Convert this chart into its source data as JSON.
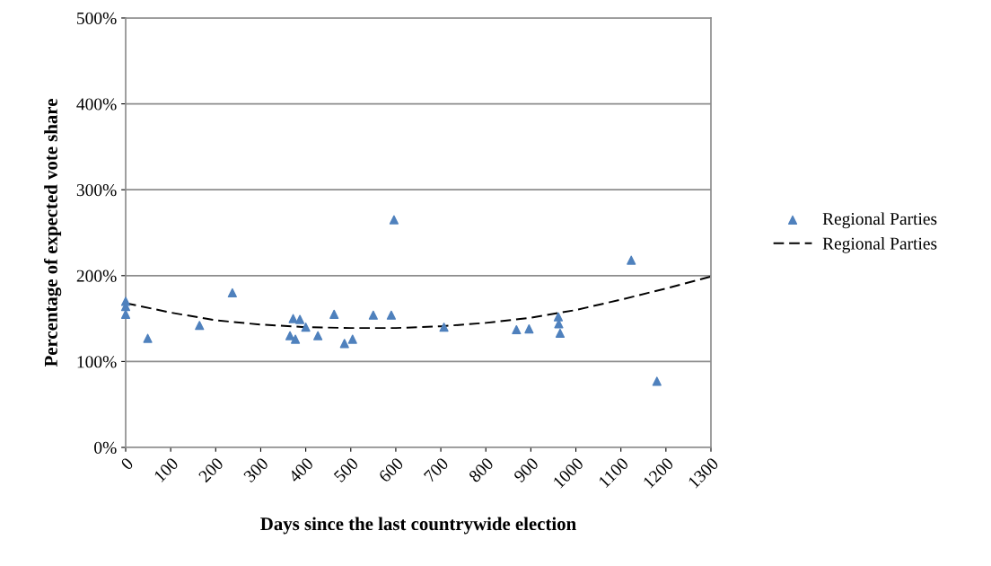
{
  "chart_data": {
    "type": "scatter",
    "xlabel": "Days since the last countrywide election",
    "ylabel": "Percentage of expected vote share",
    "xlim": [
      0,
      1300
    ],
    "xticks": [
      0,
      100,
      200,
      300,
      400,
      500,
      600,
      700,
      800,
      900,
      1000,
      1100,
      1200,
      1300
    ],
    "ylim": [
      0,
      500
    ],
    "yticks": [
      {
        "value": 0,
        "label": "0%"
      },
      {
        "value": 100,
        "label": "100%"
      },
      {
        "value": 200,
        "label": "200%"
      },
      {
        "value": 300,
        "label": "300%"
      },
      {
        "value": 400,
        "label": "400%"
      },
      {
        "value": 500,
        "label": "500%"
      }
    ],
    "grid": "y",
    "legend": "right",
    "series": [
      {
        "name": "Regional Parties",
        "color": "#4f81bd",
        "marker": "triangle",
        "x": [
          0,
          0,
          0,
          49,
          164,
          237,
          365,
          372,
          377,
          387,
          400,
          427,
          463,
          486,
          504,
          550,
          590,
          596,
          707,
          868,
          896,
          961,
          962,
          965,
          1123,
          1180
        ],
        "values": [
          170,
          164,
          155,
          127,
          142,
          180,
          130,
          150,
          126,
          149,
          140,
          130,
          155,
          121,
          126,
          154,
          154,
          265,
          140,
          137,
          138,
          152,
          144,
          133,
          218,
          77
        ]
      },
      {
        "name": "Regional Parties",
        "type": "line",
        "color": "#000000",
        "line_style": "dashed",
        "x": [
          0,
          100,
          200,
          300,
          400,
          500,
          600,
          700,
          800,
          900,
          1000,
          1100,
          1200,
          1300
        ],
        "values": [
          168,
          157,
          148,
          143,
          140,
          139,
          139,
          141,
          145,
          151,
          160,
          172,
          185,
          199
        ]
      }
    ]
  }
}
